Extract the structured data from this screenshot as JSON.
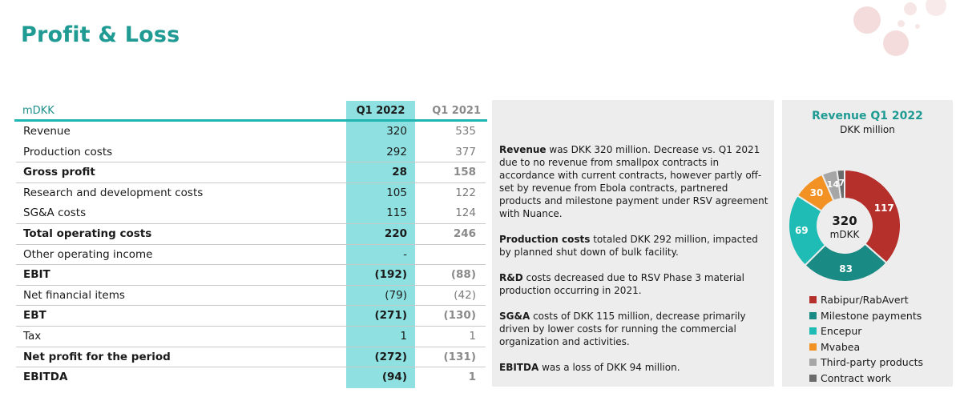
{
  "page": {
    "title": "Profit & Loss"
  },
  "table": {
    "unit_label": "mDKK",
    "col_current": "Q1 2022",
    "col_prior": "Q1 2021",
    "rows": [
      {
        "label": "Revenue",
        "q1_2022": "320",
        "q1_2021": "535",
        "bold": false
      },
      {
        "label": "Production costs",
        "q1_2022": "292",
        "q1_2021": "377",
        "bold": false
      },
      {
        "label": "Gross profit",
        "q1_2022": "28",
        "q1_2021": "158",
        "bold": true
      },
      {
        "label": "Research and development costs",
        "q1_2022": "105",
        "q1_2021": "122",
        "bold": false
      },
      {
        "label": "SG&A costs",
        "q1_2022": "115",
        "q1_2021": "124",
        "bold": false
      },
      {
        "label": "Total operating costs",
        "q1_2022": "220",
        "q1_2021": "246",
        "bold": true
      },
      {
        "label": "Other operating income",
        "q1_2022": "-",
        "q1_2021": "",
        "bold": false
      },
      {
        "label": "EBIT",
        "q1_2022": "(192)",
        "q1_2021": "(88)",
        "bold": true
      },
      {
        "label": "Net financial items",
        "q1_2022": "(79)",
        "q1_2021": "(42)",
        "bold": false
      },
      {
        "label": "EBT",
        "q1_2022": "(271)",
        "q1_2021": "(130)",
        "bold": true
      },
      {
        "label": "Tax",
        "q1_2022": "1",
        "q1_2021": "1",
        "bold": false
      },
      {
        "label": "Net profit for the period",
        "q1_2022": "(272)",
        "q1_2021": "(131)",
        "bold": true
      },
      {
        "label": "EBITDA",
        "q1_2022": "(94)",
        "q1_2021": "1",
        "bold": true
      }
    ]
  },
  "commentary": {
    "revenue": {
      "lead": "Revenue",
      "text": " was DKK 320 million. Decrease vs. Q1 2021 due to no revenue from smallpox contracts in accordance with current contracts, however partly off-set by revenue from Ebola contracts, partnered products and milestone payment under RSV agreement with Nuance."
    },
    "production": {
      "lead": "Production costs",
      "text": " totaled DKK 292 million, impacted by planned shut down of bulk facility."
    },
    "rnd": {
      "lead": "R&D",
      "text": " costs decreased due to RSV Phase 3 material production occurring in 2021."
    },
    "sga": {
      "lead": "SG&A",
      "text": " costs of DKK 115 million, decrease primarily driven by lower costs for running the commercial organization and activities."
    },
    "ebitda": {
      "lead": "EBITDA",
      "text": " was a loss of DKK 94 million."
    }
  },
  "chart_data": {
    "type": "pie",
    "title": "Revenue  Q1 2022",
    "subtitle": "DKK million",
    "center_value": "320",
    "center_unit": "mDKK",
    "total": 320,
    "series": [
      {
        "name": "Rabipur/RabAvert",
        "value": 117,
        "label": "117",
        "color": "#b5302a"
      },
      {
        "name": "Milestone payments",
        "value": 83,
        "label": "83",
        "color": "#1a8a84"
      },
      {
        "name": "Encepur",
        "value": 69,
        "label": "69",
        "color": "#1fbcb6"
      },
      {
        "name": "Mvabea",
        "value": 30,
        "label": "30",
        "color": "#f39224"
      },
      {
        "name": "Third-party products",
        "value": 14,
        "label": "14",
        "color": "#a6a6a6"
      },
      {
        "name": "Contract work",
        "value": 7,
        "label": "7",
        "color": "#6b6b6b"
      }
    ]
  }
}
